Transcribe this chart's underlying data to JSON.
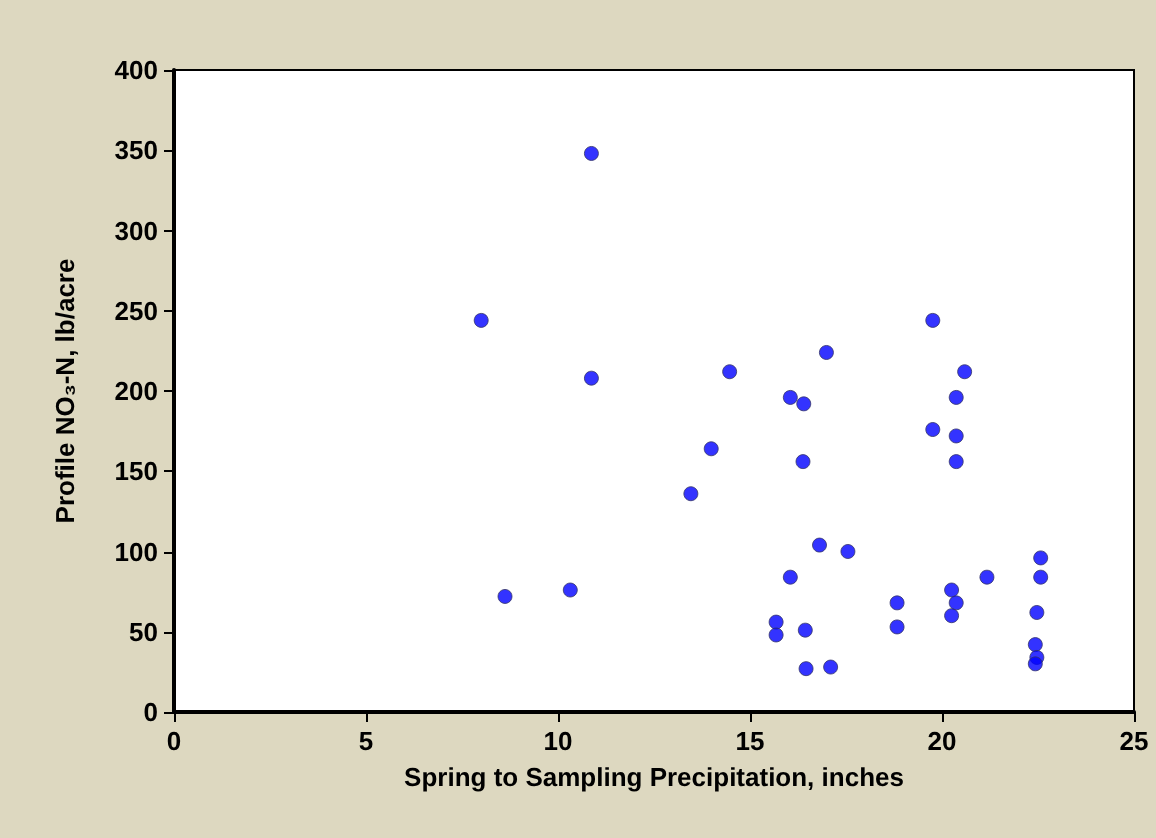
{
  "chart_data": {
    "type": "scatter",
    "xlabel": "Spring to Sampling Precipitation, inches",
    "ylabel": "Profile NO₃-N, lb/acre",
    "series": [
      {
        "color": "#0000ff",
        "x": [
          10.87,
          8.0,
          10.87,
          8.62,
          10.32,
          14.47,
          16.99,
          16.05,
          16.4,
          13.99,
          16.38,
          13.46,
          16.81,
          17.55,
          16.05,
          15.68,
          15.68,
          16.44,
          16.46,
          17.1,
          19.76,
          20.59,
          20.37,
          19.76,
          20.37,
          20.37,
          21.17,
          20.25,
          20.37,
          20.25,
          18.83,
          18.83,
          22.57,
          22.57,
          22.47,
          22.43,
          22.47,
          22.43
        ],
        "values": [
          348,
          244,
          208,
          72,
          76,
          212,
          224,
          196,
          192,
          164,
          156,
          136,
          104,
          100,
          84,
          56,
          48,
          51,
          27,
          28,
          244,
          212,
          196,
          176,
          172,
          156,
          84,
          76,
          68,
          60,
          68,
          53,
          96,
          84,
          62,
          42,
          34,
          30
        ]
      }
    ],
    "xlim": [
      0,
      25
    ],
    "xticks": [
      0,
      5,
      10,
      15,
      20,
      25
    ],
    "ylim": [
      0,
      400
    ],
    "yticks": [
      0,
      50,
      100,
      150,
      200,
      250,
      300,
      350,
      400
    ],
    "marker": "circle",
    "grid": false
  }
}
